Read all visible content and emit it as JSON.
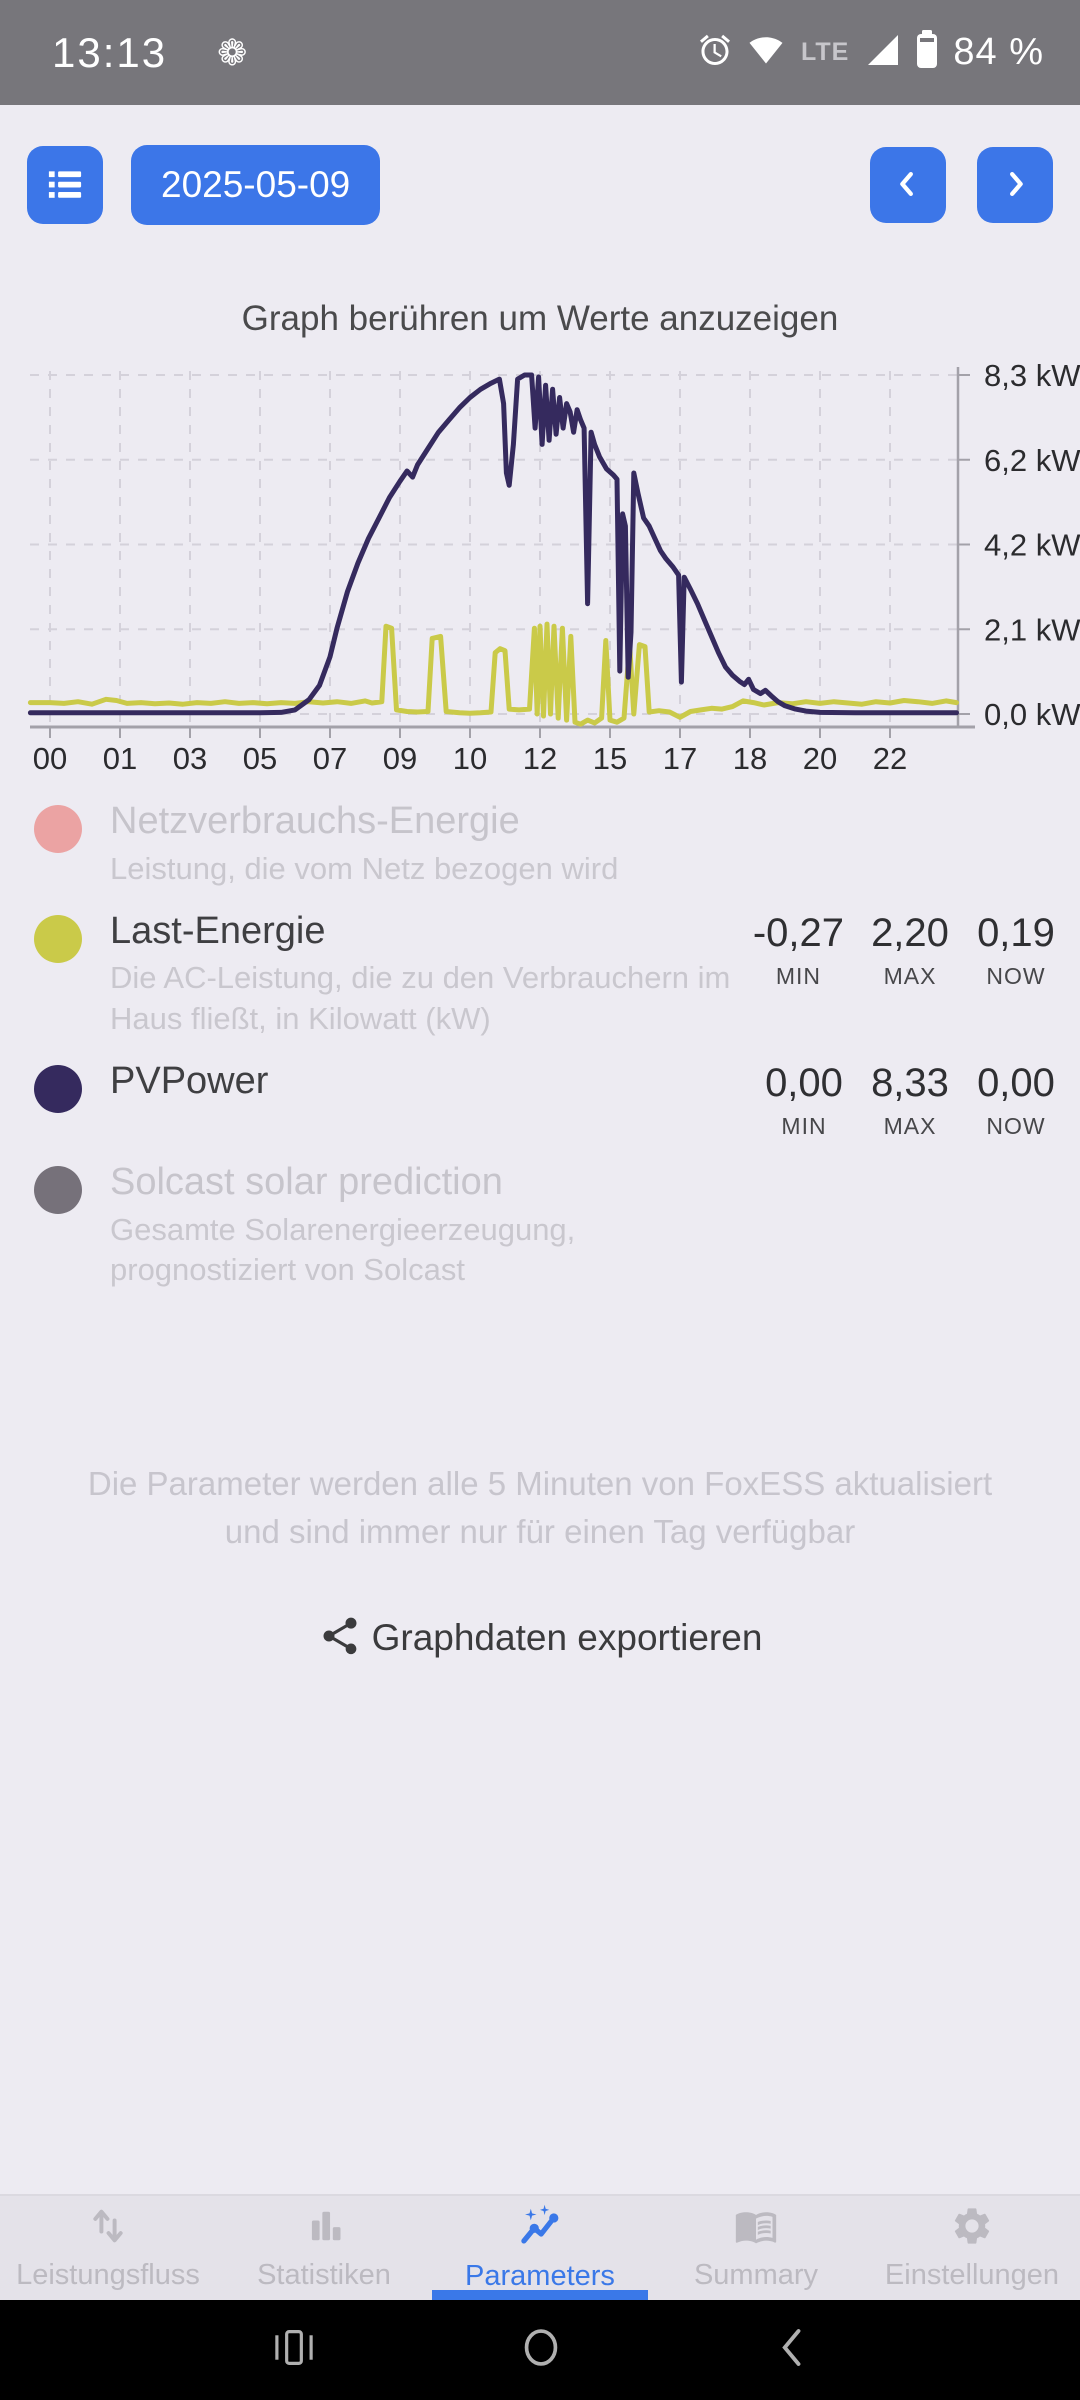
{
  "status_bar": {
    "time": "13:13",
    "network_label": "LTE",
    "battery": "84 %"
  },
  "toolbar": {
    "date": "2025-05-09"
  },
  "chart": {
    "hint": "Graph berühren um Werte anzuzeigen"
  },
  "chart_data": {
    "type": "line",
    "title": "Graph berühren um Werte anzuzeigen",
    "y_tick_labels": [
      "8,3 kW",
      "6,2 kW",
      "4,2 kW",
      "2,1 kW",
      "0,0 kW"
    ],
    "y_max_kw": 8.3,
    "y_unit": "kW",
    "x_tick_labels": [
      "00",
      "01",
      "03",
      "05",
      "07",
      "09",
      "10",
      "12",
      "15",
      "17",
      "18",
      "20",
      "22"
    ],
    "grid": true,
    "legend_position": "below",
    "hidden_series": [
      "Netzverbrauchs-Energie",
      "Solcast solar prediction"
    ],
    "series": [
      {
        "name": "Last-Energie",
        "color": "#caca49",
        "min": -0.27,
        "max": 2.2,
        "now": 0.19,
        "points": [
          [
            -0.28,
            0.28
          ],
          [
            0,
            0.28
          ],
          [
            0.2,
            0.26
          ],
          [
            0.4,
            0.3
          ],
          [
            0.6,
            0.24
          ],
          [
            0.8,
            0.36
          ],
          [
            0.95,
            0.33
          ],
          [
            1.1,
            0.26
          ],
          [
            1.3,
            0.28
          ],
          [
            1.5,
            0.25
          ],
          [
            1.7,
            0.27
          ],
          [
            1.9,
            0.24
          ],
          [
            2.1,
            0.28
          ],
          [
            2.3,
            0.26
          ],
          [
            2.5,
            0.3
          ],
          [
            2.7,
            0.26
          ],
          [
            2.9,
            0.28
          ],
          [
            3.1,
            0.25
          ],
          [
            3.3,
            0.28
          ],
          [
            3.5,
            0.26
          ],
          [
            3.7,
            0.3
          ],
          [
            3.9,
            0.27
          ],
          [
            4.1,
            0.3
          ],
          [
            4.3,
            0.26
          ],
          [
            4.5,
            0.32
          ],
          [
            4.6,
            0.27
          ],
          [
            4.74,
            0.3
          ],
          [
            4.8,
            2.15
          ],
          [
            4.88,
            2.1
          ],
          [
            4.95,
            0.1
          ],
          [
            5.1,
            0.06
          ],
          [
            5.25,
            0.05
          ],
          [
            5.4,
            0.06
          ],
          [
            5.46,
            1.85
          ],
          [
            5.58,
            1.9
          ],
          [
            5.66,
            0.06
          ],
          [
            5.85,
            0.03
          ],
          [
            6.0,
            0.02
          ],
          [
            6.15,
            0.03
          ],
          [
            6.3,
            0.05
          ],
          [
            6.36,
            1.5
          ],
          [
            6.43,
            1.6
          ],
          [
            6.5,
            1.55
          ],
          [
            6.56,
            0.12
          ],
          [
            6.7,
            0.1
          ],
          [
            6.85,
            0.12
          ],
          [
            6.92,
            2.1
          ],
          [
            6.96,
            0.0
          ],
          [
            7.0,
            2.15
          ],
          [
            7.05,
            -0.05
          ],
          [
            7.1,
            2.2
          ],
          [
            7.15,
            0.0
          ],
          [
            7.2,
            2.15
          ],
          [
            7.26,
            -0.1
          ],
          [
            7.32,
            2.1
          ],
          [
            7.38,
            -0.15
          ],
          [
            7.44,
            1.9
          ],
          [
            7.5,
            -0.2
          ],
          [
            7.58,
            -0.25
          ],
          [
            7.68,
            -0.15
          ],
          [
            7.78,
            -0.22
          ],
          [
            7.88,
            -0.1
          ],
          [
            7.94,
            1.8
          ],
          [
            8.0,
            -0.15
          ],
          [
            8.1,
            -0.2
          ],
          [
            8.2,
            -0.1
          ],
          [
            8.28,
            1.7
          ],
          [
            8.34,
            0.0
          ],
          [
            8.42,
            1.7
          ],
          [
            8.5,
            1.65
          ],
          [
            8.56,
            0.05
          ],
          [
            8.7,
            0.08
          ],
          [
            8.85,
            0.05
          ],
          [
            9.0,
            -0.08
          ],
          [
            9.15,
            0.06
          ],
          [
            9.3,
            0.1
          ],
          [
            9.45,
            0.14
          ],
          [
            9.6,
            0.12
          ],
          [
            9.75,
            0.18
          ],
          [
            9.9,
            0.32
          ],
          [
            10.05,
            0.28
          ],
          [
            10.2,
            0.22
          ],
          [
            10.4,
            0.28
          ],
          [
            10.6,
            0.25
          ],
          [
            10.8,
            0.3
          ],
          [
            11.0,
            0.26
          ],
          [
            11.2,
            0.3
          ],
          [
            11.4,
            0.27
          ],
          [
            11.6,
            0.24
          ],
          [
            11.8,
            0.3
          ],
          [
            12.0,
            0.27
          ],
          [
            12.2,
            0.33
          ],
          [
            12.4,
            0.3
          ],
          [
            12.6,
            0.26
          ],
          [
            12.8,
            0.32
          ],
          [
            12.95,
            0.28
          ]
        ]
      },
      {
        "name": "PVPower",
        "color": "#352a5e",
        "min": 0.0,
        "max": 8.33,
        "now": 0.0,
        "points": [
          [
            -0.28,
            0.03
          ],
          [
            0.5,
            0.03
          ],
          [
            1,
            0.03
          ],
          [
            1.5,
            0.03
          ],
          [
            2,
            0.03
          ],
          [
            2.5,
            0.03
          ],
          [
            3,
            0.03
          ],
          [
            3.3,
            0.04
          ],
          [
            3.5,
            0.1
          ],
          [
            3.7,
            0.35
          ],
          [
            3.85,
            0.7
          ],
          [
            4.0,
            1.4
          ],
          [
            4.1,
            2.1
          ],
          [
            4.25,
            3.0
          ],
          [
            4.4,
            3.7
          ],
          [
            4.55,
            4.3
          ],
          [
            4.7,
            4.8
          ],
          [
            4.85,
            5.3
          ],
          [
            5.0,
            5.7
          ],
          [
            5.1,
            5.95
          ],
          [
            5.18,
            5.8
          ],
          [
            5.25,
            6.1
          ],
          [
            5.4,
            6.5
          ],
          [
            5.55,
            6.9
          ],
          [
            5.7,
            7.2
          ],
          [
            5.85,
            7.5
          ],
          [
            6.0,
            7.75
          ],
          [
            6.15,
            7.95
          ],
          [
            6.3,
            8.1
          ],
          [
            6.42,
            8.2
          ],
          [
            6.48,
            7.6
          ],
          [
            6.52,
            5.9
          ],
          [
            6.56,
            5.6
          ],
          [
            6.62,
            6.6
          ],
          [
            6.68,
            8.2
          ],
          [
            6.78,
            8.3
          ],
          [
            6.88,
            8.3
          ],
          [
            6.93,
            7.0
          ],
          [
            6.98,
            8.25
          ],
          [
            7.03,
            6.6
          ],
          [
            7.08,
            8.05
          ],
          [
            7.13,
            6.7
          ],
          [
            7.18,
            7.95
          ],
          [
            7.23,
            6.85
          ],
          [
            7.28,
            7.75
          ],
          [
            7.33,
            7.0
          ],
          [
            7.38,
            7.6
          ],
          [
            7.43,
            7.4
          ],
          [
            7.48,
            6.9
          ],
          [
            7.53,
            7.45
          ],
          [
            7.58,
            7.2
          ],
          [
            7.63,
            7.0
          ],
          [
            7.68,
            2.7
          ],
          [
            7.73,
            6.9
          ],
          [
            7.78,
            6.6
          ],
          [
            7.85,
            6.3
          ],
          [
            7.95,
            6.0
          ],
          [
            8.05,
            5.85
          ],
          [
            8.1,
            5.75
          ],
          [
            8.14,
            1.05
          ],
          [
            8.18,
            4.9
          ],
          [
            8.22,
            4.6
          ],
          [
            8.26,
            0.9
          ],
          [
            8.3,
            2.0
          ],
          [
            8.34,
            5.9
          ],
          [
            8.4,
            5.4
          ],
          [
            8.48,
            4.8
          ],
          [
            8.56,
            4.6
          ],
          [
            8.64,
            4.3
          ],
          [
            8.72,
            4.0
          ],
          [
            8.8,
            3.8
          ],
          [
            8.9,
            3.6
          ],
          [
            8.98,
            3.4
          ],
          [
            9.02,
            0.78
          ],
          [
            9.06,
            3.35
          ],
          [
            9.15,
            3.05
          ],
          [
            9.25,
            2.7
          ],
          [
            9.35,
            2.3
          ],
          [
            9.45,
            1.9
          ],
          [
            9.55,
            1.5
          ],
          [
            9.65,
            1.15
          ],
          [
            9.75,
            0.95
          ],
          [
            9.85,
            0.8
          ],
          [
            9.92,
            0.72
          ],
          [
            9.98,
            0.85
          ],
          [
            10.05,
            0.6
          ],
          [
            10.15,
            0.5
          ],
          [
            10.22,
            0.58
          ],
          [
            10.3,
            0.45
          ],
          [
            10.4,
            0.3
          ],
          [
            10.5,
            0.2
          ],
          [
            10.65,
            0.12
          ],
          [
            10.8,
            0.07
          ],
          [
            11,
            0.04
          ],
          [
            11.5,
            0.03
          ],
          [
            12,
            0.03
          ],
          [
            12.5,
            0.03
          ],
          [
            12.95,
            0.03
          ]
        ]
      }
    ]
  },
  "legend": {
    "stat_labels": {
      "min": "MIN",
      "max": "MAX",
      "now": "NOW"
    },
    "items": [
      {
        "title": "Netzverbrauchs-Energie",
        "subtitle": "Leistung, die vom Netz bezogen wird",
        "color": "#eba3a3",
        "enabled": false
      },
      {
        "title": "Last-Energie",
        "subtitle": "Die AC-Leistung, die zu den Verbrauchern im Haus fließt, in Kilowatt (kW)",
        "color": "#caca49",
        "enabled": true,
        "min": "-0,27",
        "max": "2,20",
        "now": "0,19"
      },
      {
        "title": "PVPower",
        "subtitle": "",
        "color": "#352a5e",
        "enabled": true,
        "min": "0,00",
        "max": "8,33",
        "now": "0,00"
      },
      {
        "title": "Solcast solar prediction",
        "subtitle": "Gesamte Solarenergieerzeugung, prognostiziert von Solcast",
        "color": "#76717a",
        "enabled": false
      }
    ]
  },
  "note": "Die Parameter werden alle 5 Minuten von FoxESS aktualisiert und sind immer nur für einen Tag verfügbar",
  "export_label": "Graphdaten exportieren",
  "tabs": [
    {
      "label": "Leistungsfluss",
      "icon": "power-flow-icon",
      "active": false
    },
    {
      "label": "Statistiken",
      "icon": "stats-icon",
      "active": false
    },
    {
      "label": "Parameters",
      "icon": "parameters-icon",
      "active": true
    },
    {
      "label": "Summary",
      "icon": "summary-icon",
      "active": false
    },
    {
      "label": "Einstellungen",
      "icon": "settings-icon",
      "active": false
    }
  ],
  "colors": {
    "accent_blue": "#3c76e8",
    "status_bar": "#77767b",
    "background": "#edebf2",
    "tab_bar": "#e4e2e9",
    "pv_line": "#352a5e",
    "load_line": "#caca49",
    "grid_line": "#d4d1da",
    "axis_line": "#a3a1a9"
  }
}
